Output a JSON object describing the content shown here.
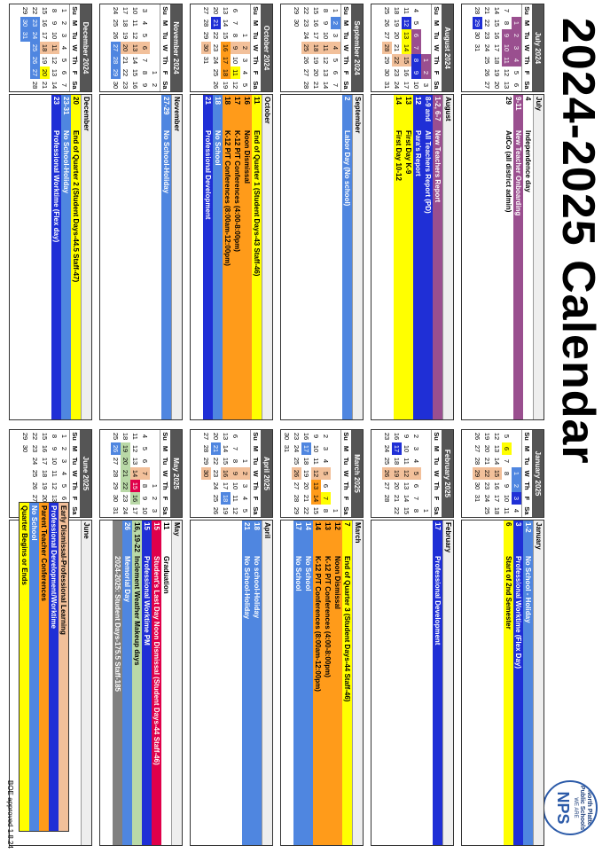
{
  "title": "2024-2025 Calendar",
  "logo": {
    "top_text": "North Platte Public Schools",
    "mark": "NPS",
    "sub_text": "WE ARE"
  },
  "weekday_headers": [
    "Su",
    "M",
    "Tu",
    "W",
    "Th",
    "F",
    "Sa"
  ],
  "colors": {
    "blue": "#1f2fd6",
    "lightblue": "#4f86e0",
    "yellow": "#ffff00",
    "orange": "#ff9b1a",
    "purple": "#9a4f8f",
    "peach": "#f2c09a",
    "green": "#b9d9a7",
    "red": "#e0004a",
    "gray": "#808080",
    "white": "#ffffff"
  },
  "months": [
    {
      "name": "July 2024",
      "section": "July",
      "start": 1,
      "days": 31,
      "cell_colors": {
        "1": "purple",
        "2": "purple",
        "3": "purple",
        "4": "purple",
        "9": "purple",
        "10": "purple",
        "11": "purple",
        "29": "blue"
      },
      "events": [
        {
          "date": "4",
          "text": "Independence day",
          "color": "white"
        },
        {
          "date": "9-11",
          "text": "New Teacher Onboarding",
          "color": "purple"
        },
        {
          "date": "29",
          "text": "AdCo (all district admin)",
          "color": "white"
        }
      ]
    },
    {
      "name": "August 2024",
      "section": "August",
      "start": 4,
      "days": 31,
      "cell_colors": {
        "1": "purple",
        "2": "purple",
        "6": "purple",
        "7": "purple",
        "8": "blue",
        "9": "blue",
        "12": "blue",
        "13": "yellow",
        "14": "yellow",
        "15": "peach",
        "22": "peach",
        "28": "peach"
      },
      "events": [
        {
          "date": "1-2, 6-7",
          "text": "New Teachers Report",
          "color": "purple"
        },
        {
          "date": "8-9 and 12",
          "text": "All Teachers Report (PD)",
          "color": "blue"
        },
        {
          "date": "12",
          "text": "Para's Report",
          "color": "blue"
        },
        {
          "date": "13",
          "text": "First Day K-9",
          "color": "yellow"
        },
        {
          "date": "14",
          "text": "First Day 10-12",
          "color": "yellow"
        }
      ]
    },
    {
      "name": "September 2024",
      "section": "September",
      "start": 0,
      "days": 30,
      "cell_colors": {
        "2": "lightblue",
        "4": "peach",
        "11": "peach",
        "18": "peach",
        "25": "peach"
      },
      "events": [
        {
          "date": "2",
          "text": "Labor Day (No school)",
          "color": "lightblue"
        }
      ]
    },
    {
      "name": "October 2024",
      "section": "October",
      "start": 2,
      "days": 31,
      "cell_colors": {
        "2": "peach",
        "9": "peach",
        "11": "yellow",
        "16": "orange",
        "17": "orange",
        "18": "orange",
        "21": "blue",
        "30": "peach"
      },
      "events": [
        {
          "date": "11",
          "text": "End of Quarter 1  (Student Days-43 Staff-46)",
          "color": "yellow"
        },
        {
          "date": "16",
          "text": "Noon Dismissal",
          "color": "orange"
        },
        {
          "date": "17",
          "text": "K-12 P/T Conferences (4:00-8:00pm)",
          "color": "orange"
        },
        {
          "date": "18",
          "text": "K-12 P/T Conferences (8:00am-12:00pm)",
          "color": "orange"
        },
        {
          "date": "18",
          "text": "No School",
          "color": "lightblue"
        },
        {
          "date": "21",
          "text": "Professional Development",
          "color": "blue"
        }
      ]
    },
    {
      "name": "November 2024",
      "section": "November",
      "start": 5,
      "days": 30,
      "cell_colors": {
        "6": "peach",
        "13": "peach",
        "20": "peach",
        "27": "lightblue",
        "28": "lightblue",
        "29": "lightblue"
      },
      "events": [
        {
          "date": "27-29",
          "text": "No School-Holiday",
          "color": "lightblue"
        }
      ]
    },
    {
      "name": "December 2024",
      "section": "December",
      "start": 0,
      "days": 31,
      "cell_colors": {
        "11": "peach",
        "18": "peach",
        "20": "yellow",
        "23": "lightblue",
        "24": "lightblue",
        "25": "lightblue",
        "26": "lightblue",
        "27": "lightblue",
        "30": "lightblue",
        "31": "lightblue"
      },
      "events": [
        {
          "date": "20",
          "text": "End of Quarter 2  (Student Days-44.5 Staff-47)",
          "color": "yellow"
        },
        {
          "date": "23-31",
          "text": "No School-Holiday",
          "color": "lightblue"
        },
        {
          "date": "23",
          "text": "Professional Worktime (Flex day)",
          "color": "blue"
        }
      ]
    },
    {
      "name": "January 2025",
      "section": "January",
      "start": 3,
      "days": 31,
      "cell_colors": {
        "1": "lightblue",
        "2": "lightblue",
        "3": "blue",
        "6": "yellow",
        "15": "peach",
        "22": "peach",
        "29": "peach"
      },
      "events": [
        {
          "date": "1-2",
          "text": "No School - Holiday",
          "color": "lightblue"
        },
        {
          "date": "3",
          "text": "Professional Worktime (Flex Day)",
          "color": "blue"
        },
        {
          "date": "6",
          "text": "Start of 2nd Semester",
          "color": "yellow"
        }
      ]
    },
    {
      "name": "February 2025",
      "section": "February",
      "start": 6,
      "days": 28,
      "cell_colors": {
        "5": "peach",
        "12": "peach",
        "17": "blue",
        "19": "peach",
        "26": "peach"
      },
      "events": [
        {
          "date": "17",
          "text": "Professional Development",
          "color": "blue"
        }
      ]
    },
    {
      "name": "March 2025",
      "section": "March",
      "start": 6,
      "days": 31,
      "cell_colors": {
        "5": "peach",
        "7": "yellow",
        "12": "peach",
        "13": "orange",
        "14": "orange",
        "17": "lightblue",
        "26": "peach"
      },
      "events": [
        {
          "date": "7",
          "text": "End of Quarter 3  (Student Days-44 Staff-46)",
          "color": "yellow"
        },
        {
          "date": "12",
          "text": "Noon Dismissal",
          "color": "orange"
        },
        {
          "date": "13",
          "text": "K-12 P/T Conferences (4:00-8:00pm)",
          "color": "orange"
        },
        {
          "date": "14",
          "text": "K-12 P/T Conferences (8:00am-12:00pm)",
          "color": "orange"
        },
        {
          "date": "14",
          "text": "No School",
          "color": "lightblue"
        },
        {
          "date": "17",
          "text": "No School",
          "color": "lightblue"
        }
      ]
    },
    {
      "name": "April 2025",
      "section": "April",
      "start": 2,
      "days": 30,
      "cell_colors": {
        "2": "peach",
        "9": "peach",
        "16": "peach",
        "18": "lightblue",
        "21": "lightblue",
        "30": "peach"
      },
      "events": [
        {
          "date": "18",
          "text": "No school-Holiday",
          "color": "lightblue"
        },
        {
          "date": "21",
          "text": "No School-Holiday",
          "color": "lightblue"
        }
      ]
    },
    {
      "name": "May 2025",
      "section": "May",
      "start": 4,
      "days": 31,
      "cell_colors": {
        "7": "peach",
        "11": "white",
        "14": "peach",
        "15": "red",
        "16": "green",
        "19": "green",
        "20": "green",
        "21": "green",
        "22": "green",
        "26": "lightblue"
      },
      "events": [
        {
          "date": "11",
          "text": "Graduation",
          "color": "white"
        },
        {
          "date": "15",
          "text": "Student's Last Day Noon Dismissal (Student Days-44 Staff-46)",
          "color": "red"
        },
        {
          "date": "15",
          "text": "Professional Worktime  PM",
          "color": "blue"
        },
        {
          "date": "16, 19-22",
          "text": "Inclement Weather Makeup days",
          "color": "green"
        },
        {
          "date": "26",
          "text": "Memorial Day",
          "color": "lightblue"
        },
        {
          "date": "",
          "text": "2024-2025: Student Days-175.5 Staff-185",
          "color": "gray"
        }
      ]
    },
    {
      "name": "June 2025",
      "section": "June",
      "start": 0,
      "days": 30,
      "cell_colors": {},
      "events": []
    }
  ],
  "legend": [
    {
      "text": "Early Dismissal-Professional Learning",
      "color": "peach"
    },
    {
      "text": "Professional Development/Worktime",
      "color": "blue"
    },
    {
      "text": "Parent Teacher Conferences",
      "color": "orange"
    },
    {
      "text": "No School",
      "color": "lightblue"
    },
    {
      "text": "Quarter Begins or Ends",
      "color": "yellow"
    }
  ],
  "approval": "BOE approved 1.8.24"
}
